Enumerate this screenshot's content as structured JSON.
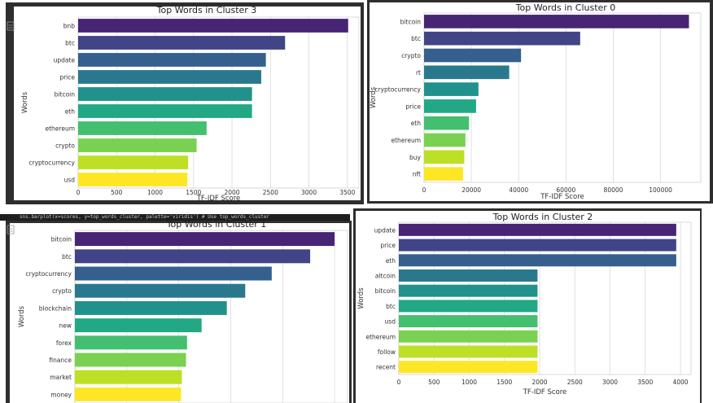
{
  "chart_data": [
    {
      "type": "bar",
      "orientation": "horizontal",
      "title": "Top Words in Cluster 3",
      "xlabel": "TF-IDF Score",
      "ylabel": "Words",
      "categories": [
        "bnb",
        "btc",
        "update",
        "price",
        "bitcoin",
        "eth",
        "ethereum",
        "crypto",
        "cryptocurrency",
        "usd"
      ],
      "values": [
        3510,
        2690,
        2440,
        2380,
        2260,
        2260,
        1670,
        1540,
        1430,
        1420
      ],
      "xlim": [
        0,
        3650
      ],
      "xticks": [
        0,
        500,
        1000,
        1500,
        2000,
        2500,
        3000,
        3500
      ],
      "xtick_labels": [
        "0",
        "500",
        "1000",
        "1500",
        "2000",
        "2500",
        "3000",
        "3500"
      ],
      "grid": true
    },
    {
      "type": "bar",
      "orientation": "horizontal",
      "title": "Top Words in Cluster 0",
      "xlabel": "TF-IDF Score",
      "ylabel": "Words",
      "categories": [
        "bitcoin",
        "btc",
        "crypto",
        "rt",
        "cryptocurrency",
        "price",
        "eth",
        "ethereum",
        "buy",
        "nft"
      ],
      "values": [
        112000,
        66000,
        41000,
        36000,
        23000,
        22000,
        19000,
        17500,
        17000,
        16500
      ],
      "xlim": [
        0,
        117000
      ],
      "xticks": [
        0,
        20000,
        40000,
        60000,
        80000,
        100000
      ],
      "xtick_labels": [
        "0",
        "20000",
        "40000",
        "60000",
        "80000",
        "100000"
      ],
      "grid": true
    },
    {
      "type": "bar",
      "orientation": "horizontal",
      "title": "Top Words in Cluster 1",
      "xlabel": "",
      "ylabel": "Words",
      "categories": [
        "bitcoin",
        "btc",
        "cryptocurrency",
        "crypto",
        "blockchain",
        "new",
        "forex",
        "finance",
        "market",
        "money"
      ],
      "values": [
        1000,
        906,
        758,
        656,
        585,
        488,
        432,
        428,
        412,
        409
      ],
      "xlim": [
        0,
        1050
      ],
      "xticks": [
        0,
        200,
        400,
        600,
        800,
        1000
      ],
      "xtick_labels": [],
      "grid": true
    },
    {
      "type": "bar",
      "orientation": "horizontal",
      "title": "Top Words in Cluster 2",
      "xlabel": "TF-IDF Score",
      "ylabel": "Words",
      "categories": [
        "update",
        "price",
        "eth",
        "altcoin",
        "bitcoin",
        "btc",
        "usd",
        "ethereum",
        "follow",
        "recent"
      ],
      "values": [
        3940,
        3940,
        3940,
        1970,
        1970,
        1970,
        1970,
        1970,
        1970,
        1970
      ],
      "xlim": [
        0,
        4150
      ],
      "xticks": [
        0,
        500,
        1000,
        1500,
        2000,
        2500,
        3000,
        3500,
        4000
      ],
      "xtick_labels": [
        "0",
        "500",
        "1000",
        "1500",
        "2000",
        "2500",
        "3000",
        "3500",
        "4000"
      ],
      "grid": true
    }
  ],
  "code_line": "sns.barplot(x=scores, y=top_words_cluster, palette='viridis')  # Use top_words_cluster",
  "colors": {
    "palette": [
      "#482475",
      "#414487",
      "#355f8d",
      "#2a788e",
      "#21918c",
      "#22a884",
      "#44bf70",
      "#7ad151",
      "#bddf26",
      "#fde725"
    ],
    "grid": "#d9d9d9",
    "panel_bg": "#ffffff",
    "frame": "#2e2e2e"
  }
}
